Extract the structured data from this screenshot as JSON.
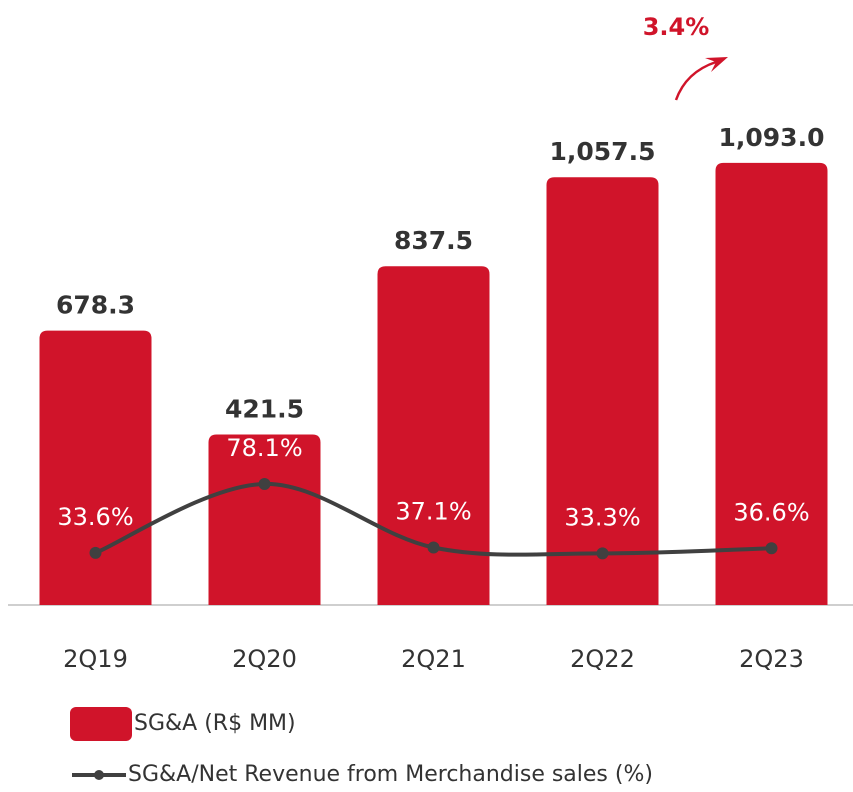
{
  "chart_data": {
    "type": "bar_line",
    "annotation": "3.4%",
    "categories": [
      "2Q19",
      "2Q20",
      "2Q21",
      "2Q22",
      "2Q23"
    ],
    "ylim": [
      0,
      1100
    ],
    "y2lim": [
      0,
      100
    ],
    "series": [
      {
        "name": "SG&A (R$ MM)",
        "type": "bar",
        "color": "#d0142a",
        "values": [
          678.3,
          421.5,
          837.5,
          1057.5,
          1093.0
        ],
        "value_labels": [
          "678.3",
          "421.5",
          "837.5",
          "1,057.5",
          "1,093.0"
        ]
      },
      {
        "name": "SG&A/Net Revenue from Merchandise sales (%)",
        "type": "line",
        "axis": "y2",
        "color": "#404040",
        "values": [
          33.6,
          78.1,
          37.1,
          33.3,
          36.6
        ],
        "value_labels": [
          "33.6%",
          "78.1%",
          "37.1%",
          "33.3%",
          "36.6%"
        ]
      }
    ]
  }
}
